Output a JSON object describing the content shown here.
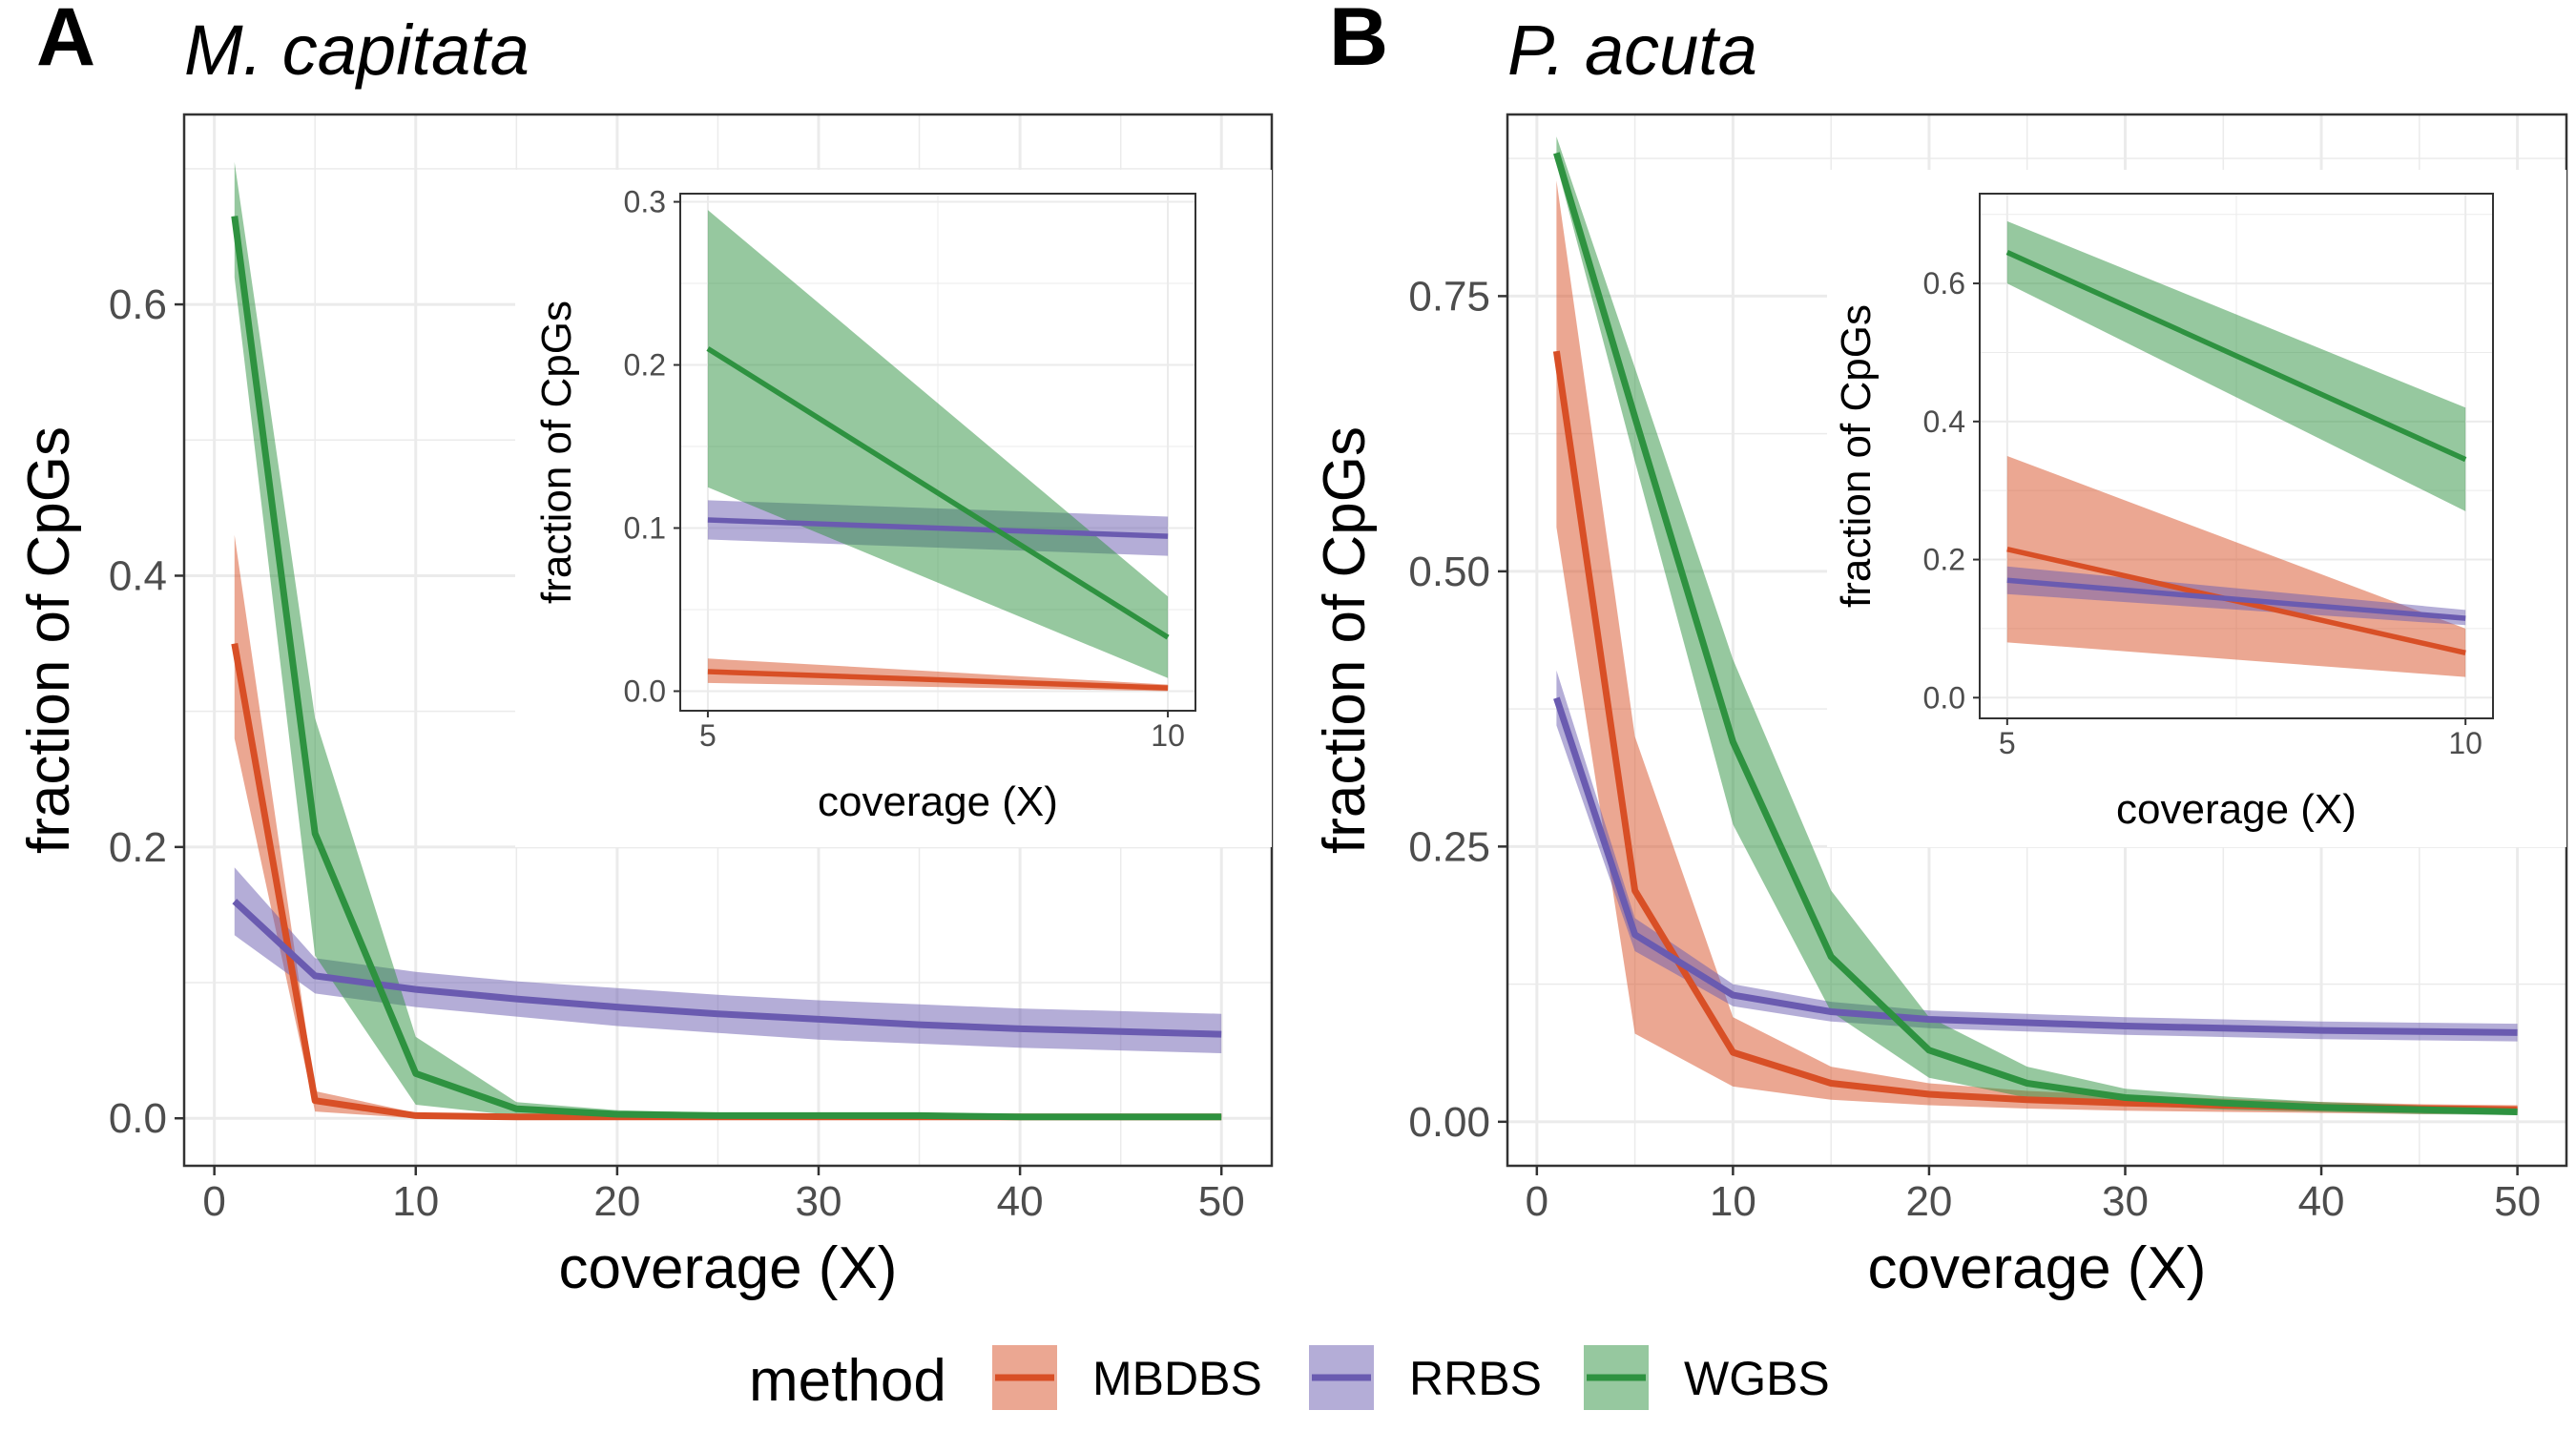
{
  "chart_data": [
    {
      "type": "area",
      "panel": "A",
      "title": "M. capitata",
      "xlabel": "coverage (X)",
      "ylabel": "fraction of CpGs",
      "xlim": [
        -1.5,
        52.5
      ],
      "ylim": [
        -0.035,
        0.74
      ],
      "xticks": [
        0,
        10,
        20,
        30,
        40,
        50
      ],
      "yticks": [
        0.0,
        0.2,
        0.4,
        0.6
      ],
      "ytick_labels": [
        "0.0",
        "0.2",
        "0.4",
        "0.6"
      ],
      "grid": true,
      "x": [
        1,
        5,
        10,
        15,
        20,
        25,
        30,
        35,
        40,
        45,
        50
      ],
      "series": [
        {
          "name": "MBDBS",
          "color": "#d84f26",
          "values": [
            0.35,
            0.013,
            0.002,
            0.001,
            0.001,
            0.001,
            0.001,
            0.001,
            0.001,
            0.001,
            0.001
          ],
          "lower": [
            0.28,
            0.005,
            0.0,
            0.0,
            0.0,
            0.0,
            0.0,
            0.0,
            0.0,
            0.0,
            0.0
          ],
          "upper": [
            0.43,
            0.02,
            0.004,
            0.002,
            0.002,
            0.002,
            0.002,
            0.002,
            0.002,
            0.002,
            0.002
          ]
        },
        {
          "name": "RRBS",
          "color": "#6a5bb0",
          "values": [
            0.16,
            0.105,
            0.095,
            0.088,
            0.082,
            0.077,
            0.073,
            0.069,
            0.066,
            0.064,
            0.062
          ],
          "lower": [
            0.135,
            0.092,
            0.082,
            0.075,
            0.068,
            0.063,
            0.058,
            0.055,
            0.052,
            0.05,
            0.048
          ],
          "upper": [
            0.185,
            0.118,
            0.108,
            0.101,
            0.096,
            0.091,
            0.087,
            0.084,
            0.081,
            0.079,
            0.077
          ]
        },
        {
          "name": "WGBS",
          "color": "#2e9240",
          "values": [
            0.665,
            0.21,
            0.033,
            0.007,
            0.003,
            0.002,
            0.002,
            0.002,
            0.001,
            0.001,
            0.001
          ],
          "lower": [
            0.62,
            0.12,
            0.01,
            0.002,
            0.001,
            0.0,
            0.0,
            0.0,
            0.0,
            0.0,
            0.0
          ],
          "upper": [
            0.705,
            0.295,
            0.06,
            0.012,
            0.006,
            0.004,
            0.003,
            0.003,
            0.003,
            0.002,
            0.002
          ]
        }
      ],
      "inset": {
        "xlabel": "coverage (X)",
        "ylabel": "fraction of CpGs",
        "xlim": [
          4.7,
          10.3
        ],
        "ylim": [
          -0.012,
          0.305
        ],
        "xticks": [
          5,
          10
        ],
        "yticks": [
          0.0,
          0.1,
          0.2,
          0.3
        ],
        "ytick_labels": [
          "0.0",
          "0.1",
          "0.2",
          "0.3"
        ],
        "x": [
          5,
          10
        ],
        "series": [
          {
            "name": "MBDBS",
            "values": [
              0.012,
              0.002
            ],
            "lower": [
              0.005,
              0.0
            ],
            "upper": [
              0.02,
              0.004
            ]
          },
          {
            "name": "RRBS",
            "values": [
              0.105,
              0.095
            ],
            "lower": [
              0.093,
              0.083
            ],
            "upper": [
              0.117,
              0.107
            ]
          },
          {
            "name": "WGBS",
            "values": [
              0.21,
              0.033
            ],
            "lower": [
              0.125,
              0.008
            ],
            "upper": [
              0.295,
              0.058
            ]
          }
        ]
      }
    },
    {
      "type": "area",
      "panel": "B",
      "title": "P. acuta",
      "xlabel": "coverage (X)",
      "ylabel": "fraction of CpGs",
      "xlim": [
        -1.5,
        52.5
      ],
      "ylim": [
        -0.04,
        0.915
      ],
      "xticks": [
        0,
        10,
        20,
        30,
        40,
        50
      ],
      "yticks": [
        0.0,
        0.25,
        0.5,
        0.75
      ],
      "ytick_labels": [
        "0.00",
        "0.25",
        "0.50",
        "0.75"
      ],
      "grid": true,
      "x": [
        1,
        5,
        10,
        15,
        20,
        25,
        30,
        35,
        40,
        45,
        50
      ],
      "series": [
        {
          "name": "MBDBS",
          "color": "#d84f26",
          "values": [
            0.7,
            0.21,
            0.063,
            0.035,
            0.025,
            0.02,
            0.017,
            0.015,
            0.013,
            0.012,
            0.011
          ],
          "lower": [
            0.54,
            0.08,
            0.032,
            0.02,
            0.015,
            0.012,
            0.01,
            0.009,
            0.008,
            0.007,
            0.007
          ],
          "upper": [
            0.855,
            0.35,
            0.095,
            0.05,
            0.035,
            0.028,
            0.024,
            0.021,
            0.018,
            0.016,
            0.015
          ]
        },
        {
          "name": "RRBS",
          "color": "#6a5bb0",
          "values": [
            0.385,
            0.17,
            0.115,
            0.1,
            0.093,
            0.09,
            0.087,
            0.085,
            0.083,
            0.082,
            0.081
          ],
          "lower": [
            0.36,
            0.155,
            0.105,
            0.091,
            0.085,
            0.082,
            0.079,
            0.077,
            0.075,
            0.074,
            0.073
          ],
          "upper": [
            0.41,
            0.185,
            0.125,
            0.109,
            0.101,
            0.098,
            0.095,
            0.093,
            0.091,
            0.09,
            0.089
          ]
        },
        {
          "name": "WGBS",
          "color": "#2e9240",
          "values": [
            0.88,
            0.64,
            0.345,
            0.15,
            0.065,
            0.035,
            0.022,
            0.017,
            0.013,
            0.011,
            0.009
          ],
          "lower": [
            0.87,
            0.6,
            0.27,
            0.1,
            0.04,
            0.022,
            0.015,
            0.011,
            0.009,
            0.007,
            0.006
          ],
          "upper": [
            0.895,
            0.685,
            0.42,
            0.21,
            0.095,
            0.05,
            0.03,
            0.023,
            0.018,
            0.015,
            0.013
          ]
        }
      ],
      "inset": {
        "xlabel": "coverage (X)",
        "ylabel": "fraction of CpGs",
        "xlim": [
          4.7,
          10.3
        ],
        "ylim": [
          -0.03,
          0.73
        ],
        "xticks": [
          5,
          10
        ],
        "yticks": [
          0.0,
          0.2,
          0.4,
          0.6
        ],
        "ytick_labels": [
          "0.0",
          "0.2",
          "0.4",
          "0.6"
        ],
        "x": [
          5,
          10
        ],
        "series": [
          {
            "name": "MBDBS",
            "values": [
              0.215,
              0.065
            ],
            "lower": [
              0.08,
              0.03
            ],
            "upper": [
              0.35,
              0.1
            ]
          },
          {
            "name": "RRBS",
            "values": [
              0.17,
              0.115
            ],
            "lower": [
              0.15,
              0.105
            ],
            "upper": [
              0.19,
              0.127
            ]
          },
          {
            "name": "WGBS",
            "values": [
              0.645,
              0.345
            ],
            "lower": [
              0.6,
              0.27
            ],
            "upper": [
              0.69,
              0.42
            ]
          }
        ]
      }
    }
  ],
  "legend": {
    "title": "method",
    "placement": "bottom",
    "items": [
      {
        "label": "MBDBS",
        "color": "#d84f26"
      },
      {
        "label": "RRBS",
        "color": "#6a5bb0"
      },
      {
        "label": "WGBS",
        "color": "#2e9240"
      }
    ]
  }
}
